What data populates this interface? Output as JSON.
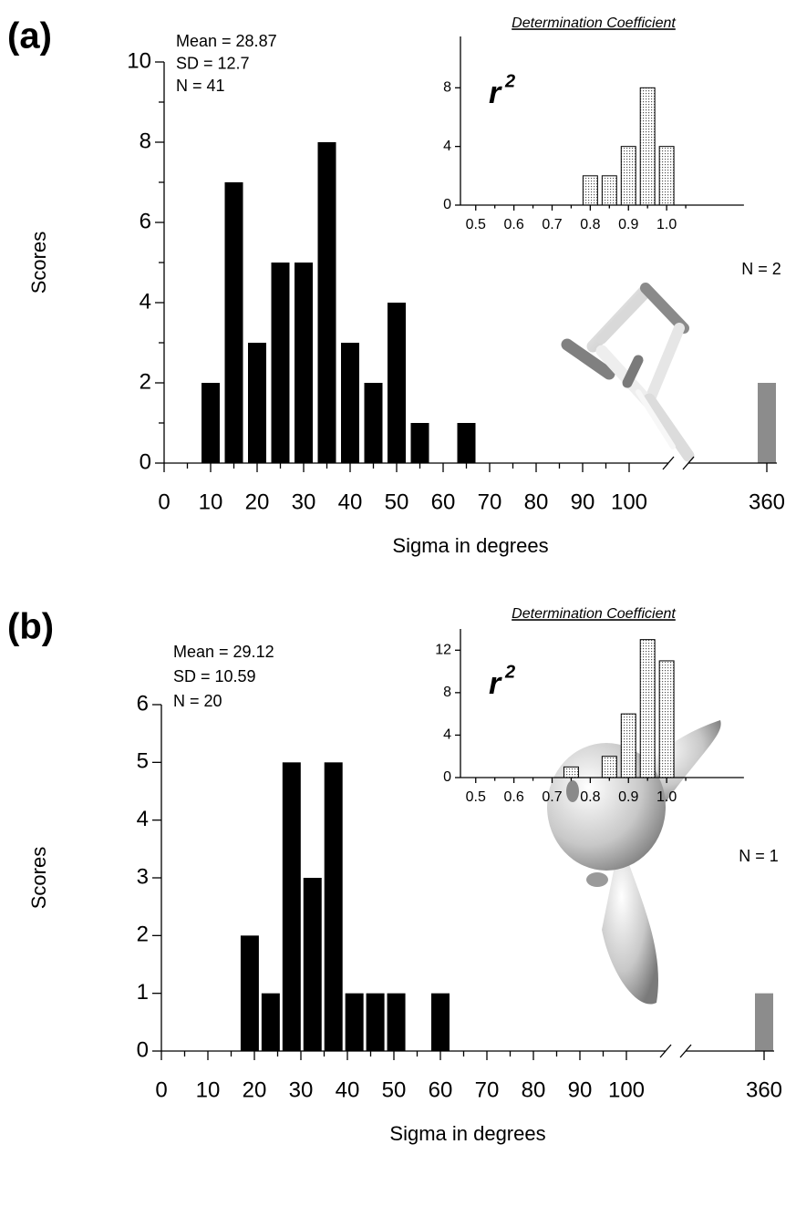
{
  "chart_data": [
    {
      "type": "bar",
      "label": "(a)",
      "stats": [
        "Mean = 28.87",
        "SD = 12.7",
        "N = 41"
      ],
      "x": [
        10,
        15,
        20,
        25,
        30,
        35,
        40,
        45,
        50,
        55,
        65
      ],
      "values": [
        2,
        7,
        3,
        5,
        5,
        8,
        3,
        2,
        4,
        1,
        1
      ],
      "color": "#000000",
      "outlier": {
        "x": 360,
        "value": 2,
        "label": "N = 2",
        "color": "#8c8c8c"
      },
      "xlim": [
        0,
        100
      ],
      "xticks": [
        0,
        10,
        20,
        30,
        40,
        50,
        60,
        70,
        80,
        90,
        100,
        360
      ],
      "xticks_minor": [
        5,
        15,
        25,
        35,
        45,
        55,
        65,
        75,
        85,
        95
      ],
      "ylim": [
        0,
        10
      ],
      "yticks": [
        0,
        2,
        4,
        6,
        8,
        10
      ],
      "yticks_minor": [
        1,
        3,
        5,
        7,
        9
      ],
      "xlabel": "Sigma in degrees",
      "ylabel": "Scores",
      "axis_break": true
    },
    {
      "type": "histogram",
      "title": "Determination Coefficient",
      "annotation": {
        "base": "r",
        "sup": "2"
      },
      "bins": [
        0.775,
        0.825,
        0.875,
        0.925,
        0.975,
        1.025
      ],
      "values": [
        2,
        2,
        4,
        8,
        4
      ],
      "color": "#555555",
      "xlim": [
        0.46,
        1.1
      ],
      "xticks": [
        0.5,
        0.6,
        0.7,
        0.8,
        0.9,
        {
          "value": 1,
          "label": "1.0"
        }
      ],
      "xticks_minor": [
        0.55,
        0.65,
        0.75,
        0.85,
        0.95,
        1.05
      ],
      "ylim": [
        0,
        11.5
      ],
      "yticks": [
        0,
        4,
        8
      ]
    },
    {
      "type": "bar",
      "label": "(b)",
      "stats": [
        "Mean = 29.12",
        "SD = 10.59",
        "N = 20"
      ],
      "x": [
        19,
        23.5,
        28,
        32.5,
        37,
        41.5,
        46,
        50.5,
        60
      ],
      "values": [
        2,
        1,
        5,
        3,
        5,
        1,
        1,
        1,
        1
      ],
      "color": "#000000",
      "outlier": {
        "x": 360,
        "value": 1,
        "label": "N = 1",
        "color": "#8c8c8c"
      },
      "xlim": [
        0,
        100
      ],
      "xticks": [
        0,
        10,
        20,
        30,
        40,
        50,
        60,
        70,
        80,
        90,
        100,
        360
      ],
      "xticks_minor": [
        5,
        15,
        25,
        35,
        45,
        55,
        65,
        75,
        85,
        95
      ],
      "ylim": [
        0,
        6
      ],
      "yticks": [
        0,
        1,
        2,
        3,
        4,
        5,
        6
      ],
      "xlabel": "Sigma in degrees",
      "ylabel": "Scores",
      "axis_break": true
    },
    {
      "type": "histogram",
      "title": "Determination Coefficient",
      "annotation": {
        "base": "r",
        "sup": "2"
      },
      "bins": [
        0.725,
        0.775,
        0.825,
        0.875,
        0.925,
        0.975,
        1.025
      ],
      "values": [
        1,
        0,
        2,
        6,
        13,
        11
      ],
      "color": "#555555",
      "xlim": [
        0.46,
        1.1
      ],
      "xticks": [
        0.5,
        0.6,
        0.7,
        0.8,
        0.9,
        {
          "value": 1,
          "label": "1.0"
        }
      ],
      "xticks_minor": [
        0.55,
        0.65,
        0.75,
        0.85,
        0.95,
        1.05
      ],
      "ylim": [
        0,
        14
      ],
      "yticks": [
        0,
        4,
        8,
        12
      ]
    }
  ]
}
